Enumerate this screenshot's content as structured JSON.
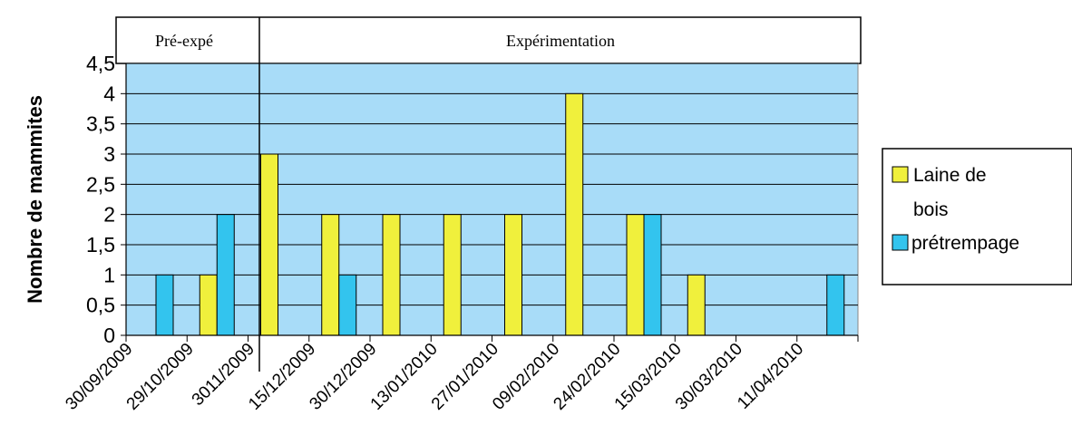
{
  "chart_data": {
    "type": "bar",
    "ylabel": "Nombre de mammites",
    "ylim": [
      0,
      4.5
    ],
    "y_ticks": [
      "0",
      "0,5",
      "1",
      "1,5",
      "2",
      "2,5",
      "3",
      "3,5",
      "4",
      "4,5"
    ],
    "categories": [
      "30/09/2009",
      "29/10/2009",
      "3011/2009",
      "15/12/2009",
      "30/12/2009",
      "13/01/2010",
      "27/01/2010",
      "09/02/2010",
      "24/02/2010",
      "15/03/2010",
      "30/03/2010",
      "11/04/2010"
    ],
    "series": [
      {
        "name": "Laine de bois",
        "color": "#f0f03c",
        "values": [
          0,
          1,
          3,
          2,
          2,
          2,
          2,
          4,
          2,
          1,
          0,
          0
        ]
      },
      {
        "name": "prétrempage",
        "color": "#33c4ee",
        "values": [
          1,
          2,
          0,
          1,
          0,
          0,
          0,
          0,
          2,
          0,
          0,
          1
        ]
      }
    ],
    "phases": [
      "Pré-expé",
      "Expérimentation"
    ],
    "plot_background": "#a8dcf8",
    "grid": true,
    "legend_position": "right"
  }
}
